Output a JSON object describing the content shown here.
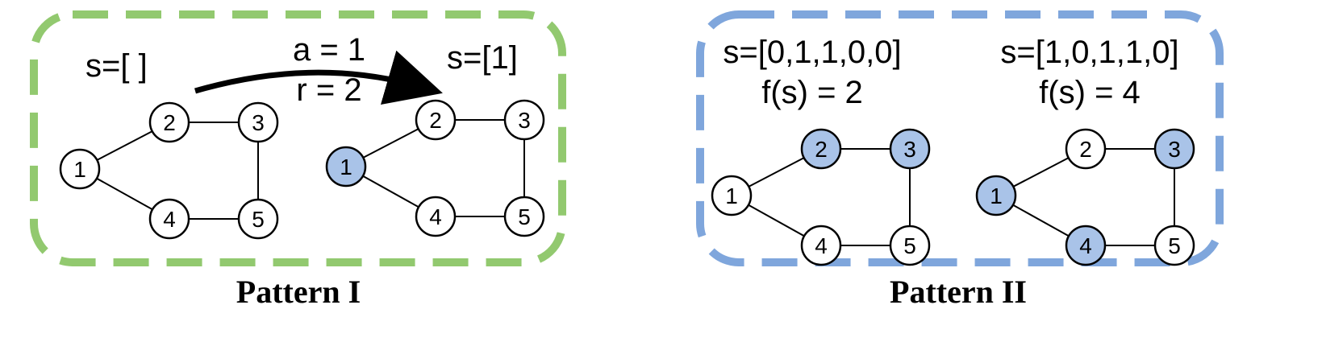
{
  "colors": {
    "pattern1_border": "#92C96F",
    "pattern2_border": "#7FA6DC",
    "node_default": "#FFFFFF",
    "node_selected": "#A9C3E8",
    "stroke": "#000000"
  },
  "pattern1": {
    "caption": "Pattern I",
    "graph_before": {
      "state_label": "s=[ ]",
      "nodes": [
        {
          "id": "1",
          "selected": false
        },
        {
          "id": "2",
          "selected": false
        },
        {
          "id": "3",
          "selected": false
        },
        {
          "id": "4",
          "selected": false
        },
        {
          "id": "5",
          "selected": false
        }
      ]
    },
    "transition": {
      "action_label": "a = 1",
      "reward_label": "r = 2"
    },
    "graph_after": {
      "state_label": "s=[1]",
      "nodes": [
        {
          "id": "1",
          "selected": true
        },
        {
          "id": "2",
          "selected": false
        },
        {
          "id": "3",
          "selected": false
        },
        {
          "id": "4",
          "selected": false
        },
        {
          "id": "5",
          "selected": false
        }
      ]
    }
  },
  "pattern2": {
    "caption": "Pattern II",
    "graph_a": {
      "state_label": "s=[0,1,1,0,0]",
      "value_label": "f(s) = 2",
      "nodes": [
        {
          "id": "1",
          "selected": false
        },
        {
          "id": "2",
          "selected": true
        },
        {
          "id": "3",
          "selected": true
        },
        {
          "id": "4",
          "selected": false
        },
        {
          "id": "5",
          "selected": false
        }
      ]
    },
    "graph_b": {
      "state_label": "s=[1,0,1,1,0]",
      "value_label": "f(s) = 4",
      "nodes": [
        {
          "id": "1",
          "selected": true
        },
        {
          "id": "2",
          "selected": false
        },
        {
          "id": "3",
          "selected": true
        },
        {
          "id": "4",
          "selected": true
        },
        {
          "id": "5",
          "selected": false
        }
      ]
    }
  },
  "edges": [
    [
      "1",
      "2"
    ],
    [
      "1",
      "4"
    ],
    [
      "2",
      "3"
    ],
    [
      "3",
      "5"
    ],
    [
      "4",
      "5"
    ]
  ]
}
